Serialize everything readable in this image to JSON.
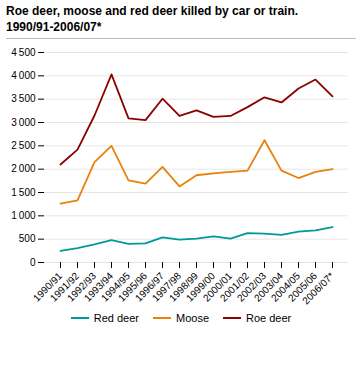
{
  "chart_data": {
    "type": "line",
    "title": "Roe deer, moose and red deer killed by car or train.",
    "subtitle": "1990/91-2006/07*",
    "categories": [
      "1990/91",
      "1991/92",
      "1992/93",
      "1993/94",
      "1994/95",
      "1995/96",
      "1996/97",
      "1997/98",
      "1998/99",
      "1999/00",
      "2000/01",
      "2001/02",
      "2002/03",
      "2003/04",
      "2004/05",
      "2005/06",
      "2006/07*"
    ],
    "series": [
      {
        "name": "Red deer",
        "color": "#009999",
        "values": [
          250,
          310,
          390,
          480,
          400,
          410,
          540,
          490,
          510,
          560,
          510,
          630,
          620,
          590,
          660,
          690,
          760
        ]
      },
      {
        "name": "Moose",
        "color": "#e8820a",
        "values": [
          1260,
          1330,
          2150,
          2500,
          1760,
          1690,
          2050,
          1630,
          1870,
          1910,
          1940,
          1970,
          2620,
          1970,
          1810,
          1940,
          2000
        ]
      },
      {
        "name": "Roe deer",
        "color": "#8b0000",
        "values": [
          2100,
          2420,
          3150,
          4030,
          3090,
          3050,
          3510,
          3140,
          3260,
          3120,
          3140,
          3330,
          3540,
          3430,
          3730,
          3920,
          3560
        ]
      }
    ],
    "ylim": [
      0,
      4500
    ],
    "yticks": [
      0,
      500,
      {
        "value": 1000,
        "label": "1 000"
      },
      {
        "value": 1500,
        "label": "1 500"
      },
      {
        "value": 2000,
        "label": "2 000"
      },
      {
        "value": 2500,
        "label": "2 500"
      },
      {
        "value": 3000,
        "label": "3 000"
      },
      {
        "value": 3500,
        "label": "3 500"
      },
      {
        "value": 4000,
        "label": "4 000"
      },
      {
        "value": 4500,
        "label": "4 500"
      }
    ],
    "grid": true,
    "legend": "bottom"
  }
}
